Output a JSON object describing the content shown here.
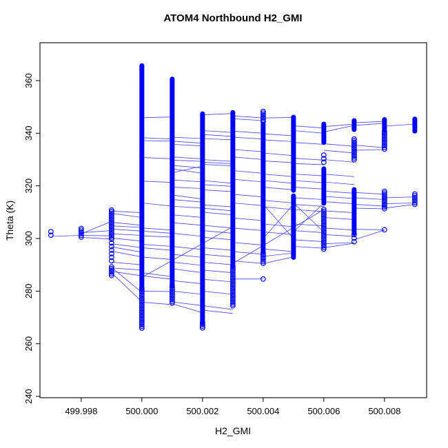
{
  "chart_data": {
    "type": "scatter",
    "title": "ATOM4 Northbound H2_GMI",
    "xlabel": "H2_GMI",
    "ylabel": "Theta (K)",
    "marker": "open-circle",
    "point_color": "#0000FE",
    "line_color": "#0000FE",
    "xlim": [
      499.99664,
      500.00939
    ],
    "ylim": [
      239.5,
      374.4
    ],
    "x_ticks": [
      {
        "value": 499.998,
        "label": "499.998"
      },
      {
        "value": 500.0,
        "label": "500.000"
      },
      {
        "value": 500.002,
        "label": "500.002"
      },
      {
        "value": 500.004,
        "label": "500.004"
      },
      {
        "value": 500.006,
        "label": "500.006"
      },
      {
        "value": 500.008,
        "label": "500.008"
      }
    ],
    "y_ticks": [
      {
        "value": 240,
        "label": "240"
      },
      {
        "value": 260,
        "label": "260"
      },
      {
        "value": 280,
        "label": "280"
      },
      {
        "value": 300,
        "label": "300"
      },
      {
        "value": 320,
        "label": "320"
      },
      {
        "value": 340,
        "label": "340"
      },
      {
        "value": 360,
        "label": "360"
      }
    ],
    "stripes": [
      {
        "x": 499.997,
        "segments": [
          [
            302.6,
            300.0,
            "sparse"
          ]
        ]
      },
      {
        "x": 499.998,
        "segments": [
          [
            303.8,
            300.2,
            "med"
          ]
        ]
      },
      {
        "x": 499.999,
        "segments": [
          [
            310.8,
            299.5,
            "med"
          ],
          [
            298.3,
            290.3,
            "sparse"
          ],
          [
            289.2,
            285.4,
            "med"
          ]
        ]
      },
      {
        "x": 500.0,
        "segments": [
          [
            365.7,
            281.0,
            "dense"
          ],
          [
            281.0,
            265.3,
            "med"
          ]
        ]
      },
      {
        "x": 500.001,
        "segments": [
          [
            360.6,
            282.0,
            "dense"
          ],
          [
            282.0,
            274.9,
            "med"
          ]
        ]
      },
      {
        "x": 500.002,
        "segments": [
          [
            347.4,
            268.0,
            "dense"
          ],
          [
            268.0,
            265.6,
            "med"
          ]
        ]
      },
      {
        "x": 500.003,
        "segments": [
          [
            347.9,
            289.5,
            "dense"
          ],
          [
            289.5,
            274.1,
            "med"
          ]
        ]
      },
      {
        "x": 500.004,
        "segments": [
          [
            348.3,
            344.2,
            "med"
          ],
          [
            343.5,
            295.0,
            "dense"
          ],
          [
            294.5,
            290.2,
            "med"
          ]
        ]
      },
      {
        "x": 500.005,
        "segments": [
          [
            346.1,
            318.3,
            "dense"
          ],
          [
            316.2,
            292.8,
            "dense"
          ]
        ]
      },
      {
        "x": 500.006,
        "segments": [
          [
            343.5,
            336.5,
            "dense"
          ],
          [
            331.7,
            328.6,
            "sparse"
          ],
          [
            326.5,
            313.4,
            "dense"
          ],
          [
            311.0,
            295.9,
            "med"
          ]
        ]
      },
      {
        "x": 500.007,
        "segments": [
          [
            344.8,
            341.4,
            "dense"
          ],
          [
            337.8,
            329.9,
            "med"
          ],
          [
            318.6,
            302.0,
            "dense"
          ],
          [
            301.5,
            298.2,
            "sparse"
          ]
        ]
      },
      {
        "x": 500.008,
        "segments": [
          [
            345.2,
            341.0,
            "dense"
          ],
          [
            340.5,
            333.6,
            "med"
          ],
          [
            317.9,
            311.2,
            "med"
          ]
        ]
      },
      {
        "x": 500.009,
        "segments": [
          [
            345.4,
            340.8,
            "dense"
          ],
          [
            316.9,
            312.5,
            "med"
          ]
        ]
      }
    ],
    "dots": [
      [
        500.004,
        284.6
      ],
      [
        500.008,
        303.3
      ]
    ],
    "connectors": [
      [
        499.997,
        300.8,
        499.998,
        301.2
      ],
      [
        499.998,
        302.2,
        499.999,
        303.0
      ],
      [
        499.998,
        301.2,
        499.999,
        301.0
      ],
      [
        499.998,
        300.4,
        499.999,
        299.8
      ],
      [
        499.998,
        301.8,
        499.999,
        306.5
      ],
      [
        499.999,
        310.4,
        500.0,
        309.8
      ],
      [
        499.999,
        309.6,
        500.0,
        308.0
      ],
      [
        499.999,
        306.2,
        500.0,
        305.0
      ],
      [
        499.999,
        304.8,
        500.0,
        304.2
      ],
      [
        499.999,
        303.6,
        500.0,
        302.8
      ],
      [
        499.999,
        301.8,
        500.0,
        301.2
      ],
      [
        499.999,
        300.2,
        500.0,
        299.0
      ],
      [
        499.999,
        298.0,
        500.0,
        296.5
      ],
      [
        499.999,
        296.8,
        500.0,
        294.8
      ],
      [
        499.999,
        295.2,
        500.0,
        293.0
      ],
      [
        499.999,
        291.0,
        500.0,
        290.0
      ],
      [
        499.999,
        288.8,
        500.0,
        288.0
      ],
      [
        499.999,
        287.5,
        500.0,
        285.8
      ],
      [
        499.999,
        289.0,
        500.0,
        279.5
      ],
      [
        499.999,
        287.0,
        500.0,
        276.0
      ],
      [
        500.0,
        345.9,
        500.001,
        346.2
      ],
      [
        500.0,
        338.3,
        500.001,
        337.8
      ],
      [
        500.0,
        337.2,
        500.001,
        337.0
      ],
      [
        500.0,
        330.8,
        500.001,
        330.3
      ],
      [
        500.0,
        321.8,
        500.001,
        321.3
      ],
      [
        500.0,
        313.5,
        500.001,
        312.3
      ],
      [
        500.0,
        304.0,
        500.001,
        303.2
      ],
      [
        500.0,
        302.8,
        500.001,
        302.0
      ],
      [
        500.0,
        301.0,
        500.001,
        300.5
      ],
      [
        500.0,
        297.8,
        500.001,
        297.0
      ],
      [
        500.0,
        296.5,
        500.001,
        295.5
      ],
      [
        500.0,
        293.0,
        500.001,
        292.0
      ],
      [
        500.0,
        287.0,
        500.001,
        285.5
      ],
      [
        500.0,
        285.8,
        500.001,
        284.5
      ],
      [
        500.0,
        280.0,
        500.001,
        279.8
      ],
      [
        500.0,
        275.8,
        500.001,
        274.9
      ],
      [
        500.001,
        338.5,
        500.002,
        338.0
      ],
      [
        500.001,
        337.0,
        500.002,
        336.2
      ],
      [
        500.001,
        335.8,
        500.002,
        335.2
      ],
      [
        500.001,
        331.0,
        500.002,
        330.2
      ],
      [
        500.001,
        329.8,
        500.002,
        329.3
      ],
      [
        500.001,
        327.8,
        500.002,
        326.8
      ],
      [
        500.001,
        326.5,
        500.002,
        324.8
      ],
      [
        500.001,
        325.0,
        500.002,
        327.5
      ],
      [
        500.001,
        322.3,
        500.002,
        321.5
      ],
      [
        500.001,
        319.5,
        500.002,
        319.0
      ],
      [
        500.001,
        316.5,
        500.002,
        315.0
      ],
      [
        500.001,
        314.8,
        500.002,
        313.8
      ],
      [
        500.001,
        312.3,
        500.002,
        311.5
      ],
      [
        500.001,
        309.0,
        500.002,
        308.0
      ],
      [
        500.001,
        306.0,
        500.002,
        305.0
      ],
      [
        500.001,
        302.0,
        500.002,
        300.8
      ],
      [
        500.001,
        297.0,
        500.002,
        295.8
      ],
      [
        500.001,
        294.0,
        500.002,
        292.8
      ],
      [
        500.001,
        291.0,
        500.002,
        289.8
      ],
      [
        500.001,
        288.5,
        500.002,
        287.0
      ],
      [
        500.001,
        284.0,
        500.002,
        282.8
      ],
      [
        500.001,
        280.0,
        500.002,
        278.8
      ],
      [
        500.001,
        275.9,
        500.002,
        274.5
      ],
      [
        500.001,
        275.2,
        500.002,
        271.8
      ],
      [
        500.002,
        347.0,
        500.003,
        347.5
      ],
      [
        500.002,
        341.0,
        500.003,
        340.3
      ],
      [
        500.002,
        339.5,
        500.003,
        338.8
      ],
      [
        500.002,
        338.0,
        500.003,
        337.5
      ],
      [
        500.002,
        330.0,
        500.003,
        329.3
      ],
      [
        500.002,
        329.0,
        500.003,
        328.4
      ],
      [
        500.002,
        328.2,
        500.003,
        327.6
      ],
      [
        500.002,
        322.0,
        500.003,
        321.0
      ],
      [
        500.002,
        320.5,
        500.003,
        319.8
      ],
      [
        500.002,
        318.5,
        500.003,
        317.8
      ],
      [
        500.002,
        312.8,
        500.003,
        312.0
      ],
      [
        500.002,
        311.5,
        500.003,
        310.5
      ],
      [
        500.002,
        310.0,
        500.003,
        309.0
      ],
      [
        500.002,
        305.0,
        500.003,
        304.0
      ],
      [
        500.002,
        303.0,
        500.003,
        302.0
      ],
      [
        500.002,
        300.5,
        500.003,
        299.5
      ],
      [
        500.002,
        296.5,
        500.003,
        295.5
      ],
      [
        500.002,
        294.0,
        500.003,
        293.0
      ],
      [
        500.002,
        291.0,
        500.003,
        290.0
      ],
      [
        500.002,
        288.0,
        500.003,
        287.0
      ],
      [
        500.002,
        284.5,
        500.003,
        283.5
      ],
      [
        500.002,
        280.0,
        500.003,
        278.8
      ],
      [
        500.002,
        274.5,
        500.003,
        273.0
      ],
      [
        500.002,
        272.8,
        500.003,
        271.5
      ],
      [
        500.003,
        346.6,
        500.004,
        345.8
      ],
      [
        500.003,
        345.5,
        500.004,
        344.8
      ],
      [
        500.003,
        340.8,
        500.004,
        340.0
      ],
      [
        500.003,
        338.5,
        500.004,
        337.8
      ],
      [
        500.003,
        333.8,
        500.004,
        333.0
      ],
      [
        500.003,
        331.0,
        500.004,
        330.0
      ],
      [
        500.003,
        325.8,
        500.004,
        324.8
      ],
      [
        500.003,
        322.5,
        500.004,
        321.5
      ],
      [
        500.003,
        316.8,
        500.004,
        315.8
      ],
      [
        500.003,
        313.5,
        500.004,
        312.5
      ],
      [
        500.003,
        307.8,
        500.004,
        306.8
      ],
      [
        500.003,
        304.0,
        500.004,
        303.0
      ],
      [
        500.003,
        298.5,
        500.004,
        297.5
      ],
      [
        500.003,
        295.0,
        500.004,
        294.0
      ],
      [
        500.003,
        291.5,
        500.004,
        290.5
      ],
      [
        500.003,
        284.6,
        500.004,
        284.6
      ],
      [
        500.004,
        345.8,
        500.005,
        346.0
      ],
      [
        500.004,
        339.8,
        500.005,
        339.0
      ],
      [
        500.004,
        337.5,
        500.005,
        336.8
      ],
      [
        500.004,
        332.5,
        500.005,
        331.5
      ],
      [
        500.004,
        329.5,
        500.005,
        328.8
      ],
      [
        500.004,
        324.5,
        500.005,
        323.5
      ],
      [
        500.004,
        322.0,
        500.005,
        321.0
      ],
      [
        500.004,
        319.5,
        500.005,
        318.5
      ],
      [
        500.004,
        314.5,
        500.005,
        313.5
      ],
      [
        500.004,
        312.0,
        500.005,
        311.0
      ],
      [
        500.004,
        305.5,
        500.005,
        304.5
      ],
      [
        500.004,
        302.5,
        500.005,
        301.5
      ],
      [
        500.004,
        296.0,
        500.005,
        295.0
      ],
      [
        500.004,
        293.2,
        500.005,
        294.5
      ],
      [
        500.004,
        290.5,
        500.005,
        293.0
      ],
      [
        500.004,
        300.0,
        500.005,
        313.0
      ],
      [
        500.004,
        313.0,
        500.005,
        300.0
      ],
      [
        500.005,
        342.8,
        500.006,
        342.0
      ],
      [
        500.005,
        341.0,
        500.006,
        340.0
      ],
      [
        500.005,
        336.5,
        500.006,
        335.8
      ],
      [
        500.005,
        330.5,
        500.006,
        329.8
      ],
      [
        500.005,
        328.5,
        500.006,
        328.0
      ],
      [
        500.005,
        324.5,
        500.006,
        323.8
      ],
      [
        500.005,
        322.0,
        500.006,
        321.2
      ],
      [
        500.005,
        319.5,
        500.006,
        318.8
      ],
      [
        500.005,
        315.5,
        500.006,
        314.8
      ],
      [
        500.005,
        313.0,
        500.006,
        312.2
      ],
      [
        500.005,
        311.0,
        500.006,
        310.2
      ],
      [
        500.005,
        305.5,
        500.006,
        304.8
      ],
      [
        500.005,
        303.0,
        500.006,
        302.2
      ],
      [
        500.005,
        299.5,
        500.006,
        298.8
      ],
      [
        500.005,
        297.0,
        500.006,
        296.3
      ],
      [
        500.005,
        302.5,
        500.006,
        313.5
      ],
      [
        500.005,
        313.5,
        500.006,
        302.5
      ],
      [
        500.006,
        342.5,
        500.007,
        343.5
      ],
      [
        500.006,
        340.5,
        500.007,
        343.0
      ],
      [
        500.006,
        336.0,
        500.007,
        335.0
      ],
      [
        500.006,
        333.5,
        500.007,
        332.5
      ],
      [
        500.006,
        330.0,
        500.007,
        329.0
      ],
      [
        500.006,
        324.5,
        500.007,
        323.5
      ],
      [
        500.006,
        321.5,
        500.007,
        320.5
      ],
      [
        500.006,
        318.0,
        500.007,
        317.2
      ],
      [
        500.006,
        316.0,
        500.007,
        315.2
      ],
      [
        500.006,
        314.0,
        500.007,
        313.2
      ],
      [
        500.006,
        310.5,
        500.007,
        309.8
      ],
      [
        500.006,
        308.0,
        500.007,
        307.2
      ],
      [
        500.006,
        304.0,
        500.007,
        303.2
      ],
      [
        500.006,
        301.5,
        500.007,
        300.8
      ],
      [
        500.006,
        298.0,
        500.007,
        298.5
      ],
      [
        500.006,
        296.5,
        500.007,
        298.2
      ],
      [
        500.007,
        344.0,
        500.008,
        344.5
      ],
      [
        500.007,
        343.0,
        500.008,
        343.8
      ],
      [
        500.007,
        335.5,
        500.008,
        334.5
      ],
      [
        500.007,
        333.5,
        500.008,
        333.8
      ],
      [
        500.007,
        317.5,
        500.008,
        316.8
      ],
      [
        500.007,
        315.5,
        500.008,
        314.8
      ],
      [
        500.007,
        313.0,
        500.008,
        312.3
      ],
      [
        500.007,
        311.5,
        500.008,
        311.3
      ],
      [
        500.007,
        303.5,
        500.008,
        303.3
      ],
      [
        500.007,
        299.5,
        500.008,
        303.2
      ],
      [
        500.008,
        342.7,
        500.009,
        343.5
      ],
      [
        500.008,
        315.5,
        500.009,
        315.8
      ],
      [
        500.008,
        313.2,
        500.009,
        313.5
      ],
      [
        500.008,
        311.5,
        500.009,
        313.0
      ],
      [
        500.0,
        285.2,
        500.003,
        304.5
      ],
      [
        500.003,
        290.5,
        500.006,
        311.0
      ]
    ]
  }
}
